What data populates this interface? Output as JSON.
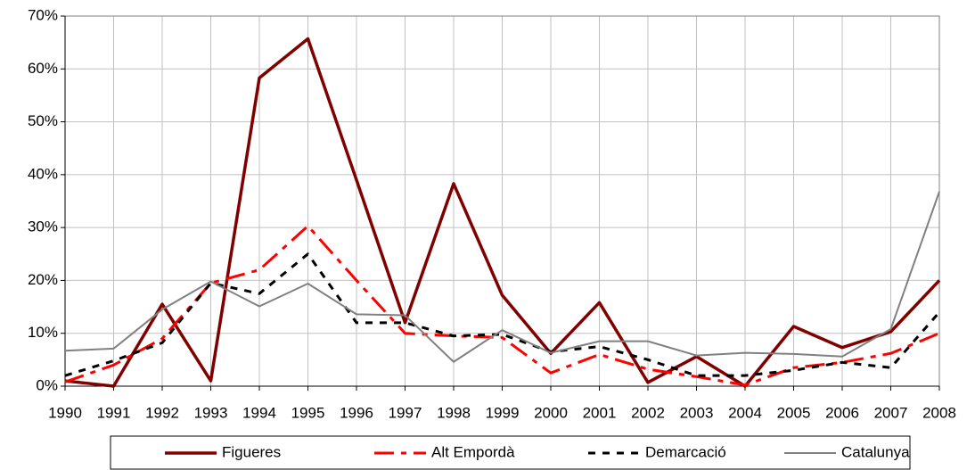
{
  "chart_data": {
    "type": "line",
    "categories": [
      "1990",
      "1991",
      "1992",
      "1993",
      "1994",
      "1995",
      "1996",
      "1997",
      "1998",
      "1999",
      "2000",
      "2001",
      "2002",
      "2003",
      "2004",
      "2005",
      "2006",
      "2007",
      "2008"
    ],
    "series": [
      {
        "name": "Figueres",
        "color": "#800000",
        "values": [
          1,
          0,
          15.5,
          1,
          58.3,
          65.7,
          39,
          12,
          38.3,
          17.2,
          6.2,
          15.8,
          0.7,
          5.6,
          0,
          11.3,
          7.3,
          10.3,
          20
        ]
      },
      {
        "name": "Alt Empordà",
        "color": "#ff0000",
        "values": [
          0.8,
          4,
          9,
          19.5,
          22,
          30.3,
          20,
          10,
          9.5,
          9.2,
          2.5,
          6,
          3.2,
          1.8,
          0.2,
          3.5,
          4.5,
          6.2,
          10
        ]
      },
      {
        "name": "Demarcació",
        "color": "#000000",
        "values": [
          2,
          4.8,
          8.2,
          19.5,
          17.5,
          25,
          12,
          12,
          9.5,
          9.8,
          6.5,
          7.5,
          5,
          2,
          2,
          3,
          4.5,
          3.5,
          14
        ]
      },
      {
        "name": "Catalunya",
        "color": "#808080",
        "values": [
          6.7,
          7.1,
          14.5,
          19.8,
          15.1,
          19.4,
          13.6,
          13.4,
          4.6,
          10.6,
          6.3,
          8.5,
          8.5,
          5.8,
          6.3,
          6.1,
          5.6,
          10.8,
          36.8
        ]
      }
    ],
    "ylim": [
      0,
      70
    ],
    "yticks": [
      {
        "value": 0,
        "label": "0%"
      },
      {
        "value": 10,
        "label": "10%"
      },
      {
        "value": 20,
        "label": "20%"
      },
      {
        "value": 30,
        "label": "30%"
      },
      {
        "value": 40,
        "label": "40%"
      },
      {
        "value": 50,
        "label": "50%"
      },
      {
        "value": 60,
        "label": "60%"
      },
      {
        "value": 70,
        "label": "70%"
      }
    ],
    "grid": true,
    "legend": "bottom"
  }
}
